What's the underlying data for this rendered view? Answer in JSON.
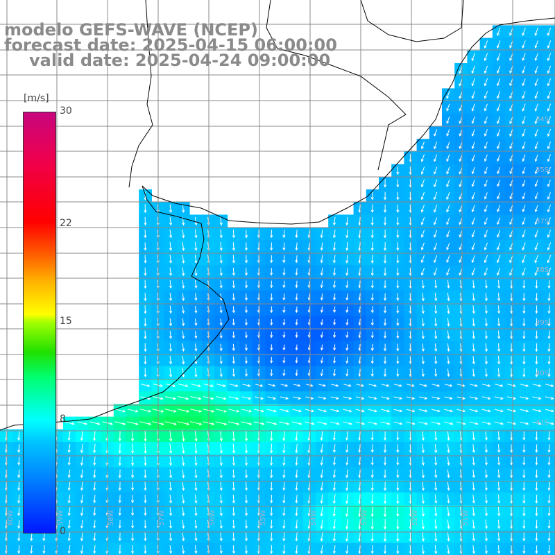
{
  "title": {
    "model": "modelo GEFS-WAVE (NCEP)",
    "forecast": "forecast date: 2025-04-15 06:00:00",
    "valid": "valid date: 2025-04-24 09:00:00"
  },
  "colorbar": {
    "unit": "[m/s]",
    "ticks": [
      {
        "label": "30",
        "value": 30
      },
      {
        "label": "22",
        "value": 22
      },
      {
        "label": "15",
        "value": 15
      },
      {
        "label": "8",
        "value": 8
      },
      {
        "label": "0",
        "value": 0
      }
    ],
    "colors": [
      "#0018ff",
      "#00c8ff",
      "#00ffff",
      "#20e000",
      "#ffff00",
      "#ff6000",
      "#ff0000",
      "#c8067e"
    ]
  },
  "lat_labels": [
    "34S",
    "35S",
    "37S",
    "38S",
    "39S",
    "40S",
    "41S"
  ],
  "lon_labels": [
    "60W",
    "59W",
    "58W",
    "57W",
    "56W",
    "55W",
    "54W",
    "53W",
    "52W",
    "51W"
  ],
  "colors": {
    "land": "#ffffff",
    "coast": "#000000",
    "grid": "#8a8a8a",
    "arrows": "#ffffff"
  }
}
